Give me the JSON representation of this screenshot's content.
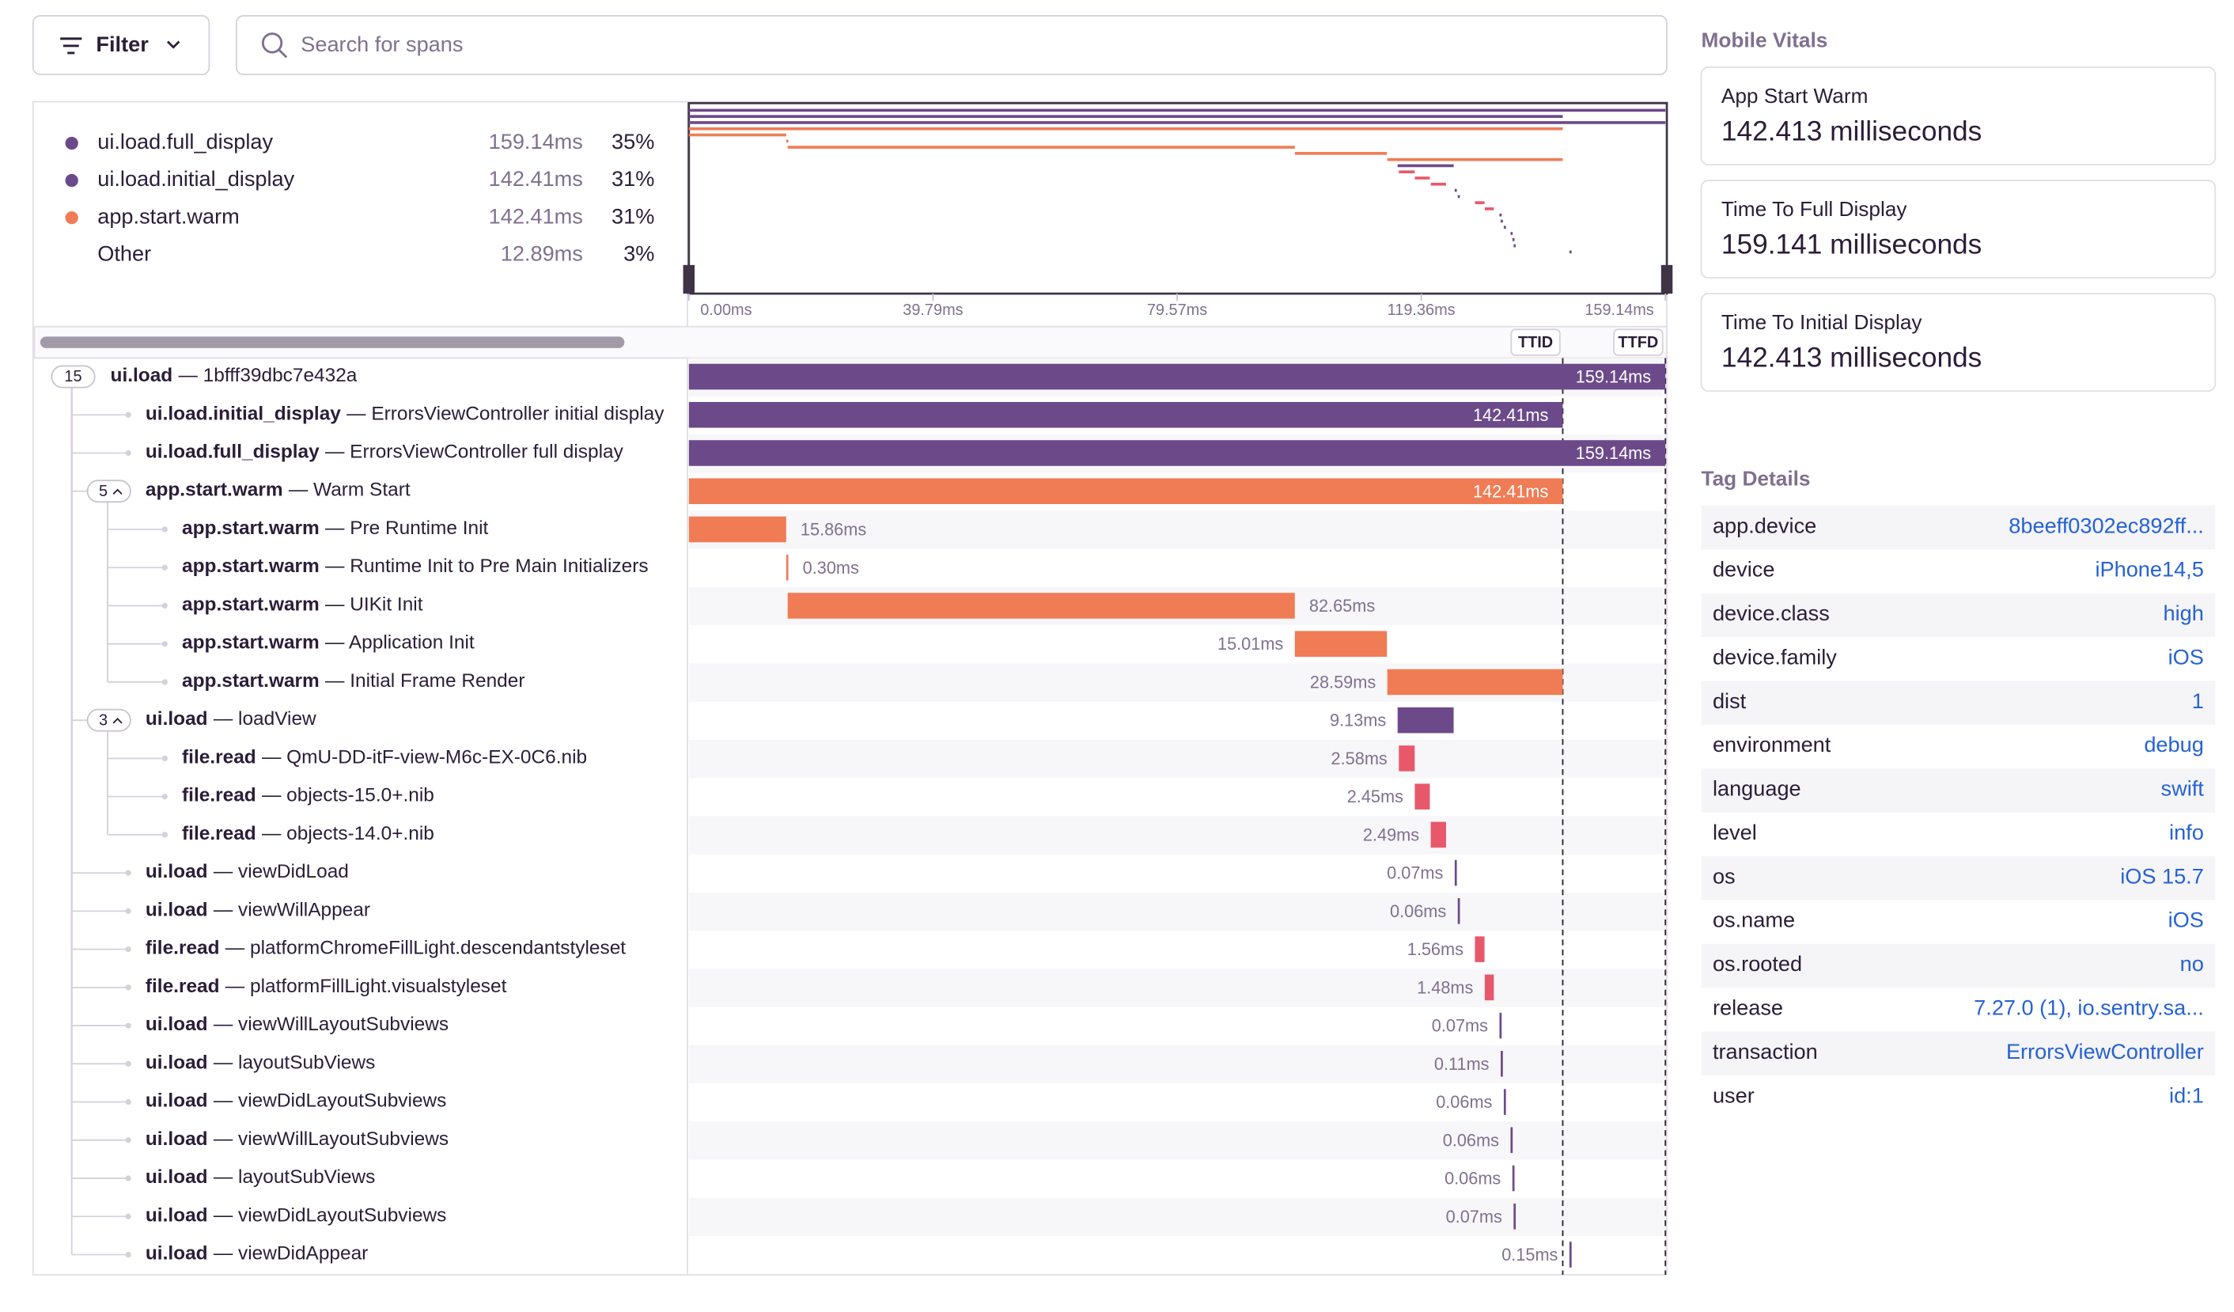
{
  "toolbar": {
    "filter": "Filter",
    "search_placeholder": "Search for spans"
  },
  "chart_data": {
    "type": "waterfall",
    "xlim": [
      0,
      159.14
    ],
    "xticks": [
      {
        "value": 0,
        "label": "0.00ms"
      },
      {
        "value": 39.79,
        "label": "39.79ms"
      },
      {
        "value": 79.57,
        "label": "79.57ms"
      },
      {
        "value": 119.36,
        "label": "119.36ms"
      },
      {
        "value": 159.14,
        "label": "159.14ms"
      }
    ],
    "markers": [
      {
        "label": "TTID",
        "value": 142.41
      },
      {
        "label": "TTFD",
        "value": 159.14
      }
    ],
    "legend": [
      {
        "name": "ui.load.full_display",
        "color": "#6c4a8a",
        "value": 159.14,
        "value_label": "159.14ms",
        "percent": 35,
        "percent_label": "35%"
      },
      {
        "name": "ui.load.initial_display",
        "color": "#6c4a8a",
        "value": 142.41,
        "value_label": "142.41ms",
        "percent": 31,
        "percent_label": "31%"
      },
      {
        "name": "app.start.warm",
        "color": "#f07c55",
        "value": 142.41,
        "value_label": "142.41ms",
        "percent": 31,
        "percent_label": "31%"
      },
      {
        "name": "Other",
        "value": 12.89,
        "value_label": "12.89ms",
        "percent": 3,
        "percent_label": "3%"
      }
    ],
    "spans": [
      {
        "op": "ui.load",
        "description": "— 1bfff39dbc7e432a",
        "depth": 0,
        "children": 15,
        "color": "#6c4a8a",
        "start": 0,
        "duration": 159.14,
        "duration_label": "159.14ms"
      },
      {
        "op": "ui.load.initial_display",
        "description": "— ErrorsViewController initial display",
        "depth": 1,
        "color": "#6c4a8a",
        "start": 0,
        "duration": 142.41,
        "duration_label": "142.41ms"
      },
      {
        "op": "ui.load.full_display",
        "description": "— ErrorsViewController full display",
        "depth": 1,
        "color": "#6c4a8a",
        "start": 0,
        "duration": 159.14,
        "duration_label": "159.14ms"
      },
      {
        "op": "app.start.warm",
        "description": "— Warm Start",
        "depth": 1,
        "children": 5,
        "color": "#f07c55",
        "start": 0,
        "duration": 142.41,
        "duration_label": "142.41ms"
      },
      {
        "op": "app.start.warm",
        "description": "— Pre Runtime Init",
        "depth": 2,
        "color": "#f07c55",
        "start": 0,
        "duration": 15.86,
        "duration_label": "15.86ms"
      },
      {
        "op": "app.start.warm",
        "description": "— Runtime Init to Pre Main Initializers",
        "depth": 2,
        "color": "#f07c55",
        "start": 15.86,
        "duration": 0.3,
        "duration_label": "0.30ms"
      },
      {
        "op": "app.start.warm",
        "description": "— UIKit Init",
        "depth": 2,
        "color": "#f07c55",
        "start": 16.1,
        "duration": 82.65,
        "duration_label": "82.65ms"
      },
      {
        "op": "app.start.warm",
        "description": "— Application Init",
        "depth": 2,
        "color": "#f07c55",
        "start": 98.75,
        "duration": 15.01,
        "duration_label": "15.01ms"
      },
      {
        "op": "app.start.warm",
        "description": "— Initial Frame Render",
        "depth": 2,
        "color": "#f07c55",
        "start": 113.82,
        "duration": 28.59,
        "duration_label": "28.59ms"
      },
      {
        "op": "ui.load",
        "description": "— loadView",
        "depth": 1,
        "children": 3,
        "color": "#6c4a8a",
        "start": 115.5,
        "duration": 9.13,
        "duration_label": "9.13ms"
      },
      {
        "op": "file.read",
        "description": "— QmU-DD-itF-view-M6c-EX-0C6.nib",
        "depth": 2,
        "color": "#e8586b",
        "start": 115.7,
        "duration": 2.58,
        "duration_label": "2.58ms"
      },
      {
        "op": "file.read",
        "description": "— objects-15.0+.nib",
        "depth": 2,
        "color": "#e8586b",
        "start": 118.3,
        "duration": 2.45,
        "duration_label": "2.45ms"
      },
      {
        "op": "file.read",
        "description": "— objects-14.0+.nib",
        "depth": 2,
        "color": "#e8586b",
        "start": 120.9,
        "duration": 2.49,
        "duration_label": "2.49ms"
      },
      {
        "op": "ui.load",
        "description": "— viewDidLoad",
        "depth": 1,
        "color": "#6c4a8a",
        "start": 124.8,
        "duration": 0.07,
        "duration_label": "0.07ms"
      },
      {
        "op": "ui.load",
        "description": "— viewWillAppear",
        "depth": 1,
        "color": "#6c4a8a",
        "start": 125.3,
        "duration": 0.06,
        "duration_label": "0.06ms"
      },
      {
        "op": "file.read",
        "description": "— platformChromeFillLight.descendantstyleset",
        "depth": 1,
        "color": "#e8586b",
        "start": 128.1,
        "duration": 1.56,
        "duration_label": "1.56ms"
      },
      {
        "op": "file.read",
        "description": "— platformFillLight.visualstyleset",
        "depth": 1,
        "color": "#e8586b",
        "start": 129.7,
        "duration": 1.48,
        "duration_label": "1.48ms"
      },
      {
        "op": "ui.load",
        "description": "— viewWillLayoutSubviews",
        "depth": 1,
        "color": "#6c4a8a",
        "start": 132.1,
        "duration": 0.07,
        "duration_label": "0.07ms"
      },
      {
        "op": "ui.load",
        "description": "— layoutSubViews",
        "depth": 1,
        "color": "#6c4a8a",
        "start": 132.3,
        "duration": 0.11,
        "duration_label": "0.11ms"
      },
      {
        "op": "ui.load",
        "description": "— viewDidLayoutSubviews",
        "depth": 1,
        "color": "#6c4a8a",
        "start": 132.8,
        "duration": 0.06,
        "duration_label": "0.06ms"
      },
      {
        "op": "ui.load",
        "description": "— viewWillLayoutSubviews",
        "depth": 1,
        "color": "#6c4a8a",
        "start": 133.9,
        "duration": 0.06,
        "duration_label": "0.06ms"
      },
      {
        "op": "ui.load",
        "description": "— layoutSubViews",
        "depth": 1,
        "color": "#6c4a8a",
        "start": 134.2,
        "duration": 0.06,
        "duration_label": "0.06ms"
      },
      {
        "op": "ui.load",
        "description": "— viewDidLayoutSubviews",
        "depth": 1,
        "color": "#6c4a8a",
        "start": 134.4,
        "duration": 0.07,
        "duration_label": "0.07ms"
      },
      {
        "op": "ui.load",
        "description": "— viewDidAppear",
        "depth": 1,
        "color": "#6c4a8a",
        "start": 143.5,
        "duration": 0.15,
        "duration_label": "0.15ms"
      }
    ]
  },
  "mobile_vitals": {
    "title": "Mobile Vitals",
    "cards": [
      {
        "label": "App Start Warm",
        "value": "142.413 milliseconds"
      },
      {
        "label": "Time To Full Display",
        "value": "159.141 milliseconds"
      },
      {
        "label": "Time To Initial Display",
        "value": "142.413 milliseconds"
      }
    ]
  },
  "tag_details": {
    "title": "Tag Details",
    "rows": [
      [
        "app.device",
        "8beeff0302ec892ff..."
      ],
      [
        "device",
        "iPhone14,5"
      ],
      [
        "device.class",
        "high"
      ],
      [
        "device.family",
        "iOS"
      ],
      [
        "dist",
        "1"
      ],
      [
        "environment",
        "debug"
      ],
      [
        "language",
        "swift"
      ],
      [
        "level",
        "info"
      ],
      [
        "os",
        "iOS 15.7"
      ],
      [
        "os.name",
        "iOS"
      ],
      [
        "os.rooted",
        "no"
      ],
      [
        "release",
        "7.27.0 (1), io.sentry.sa..."
      ],
      [
        "transaction",
        "ErrorsViewController"
      ],
      [
        "user",
        "id:1"
      ]
    ]
  }
}
